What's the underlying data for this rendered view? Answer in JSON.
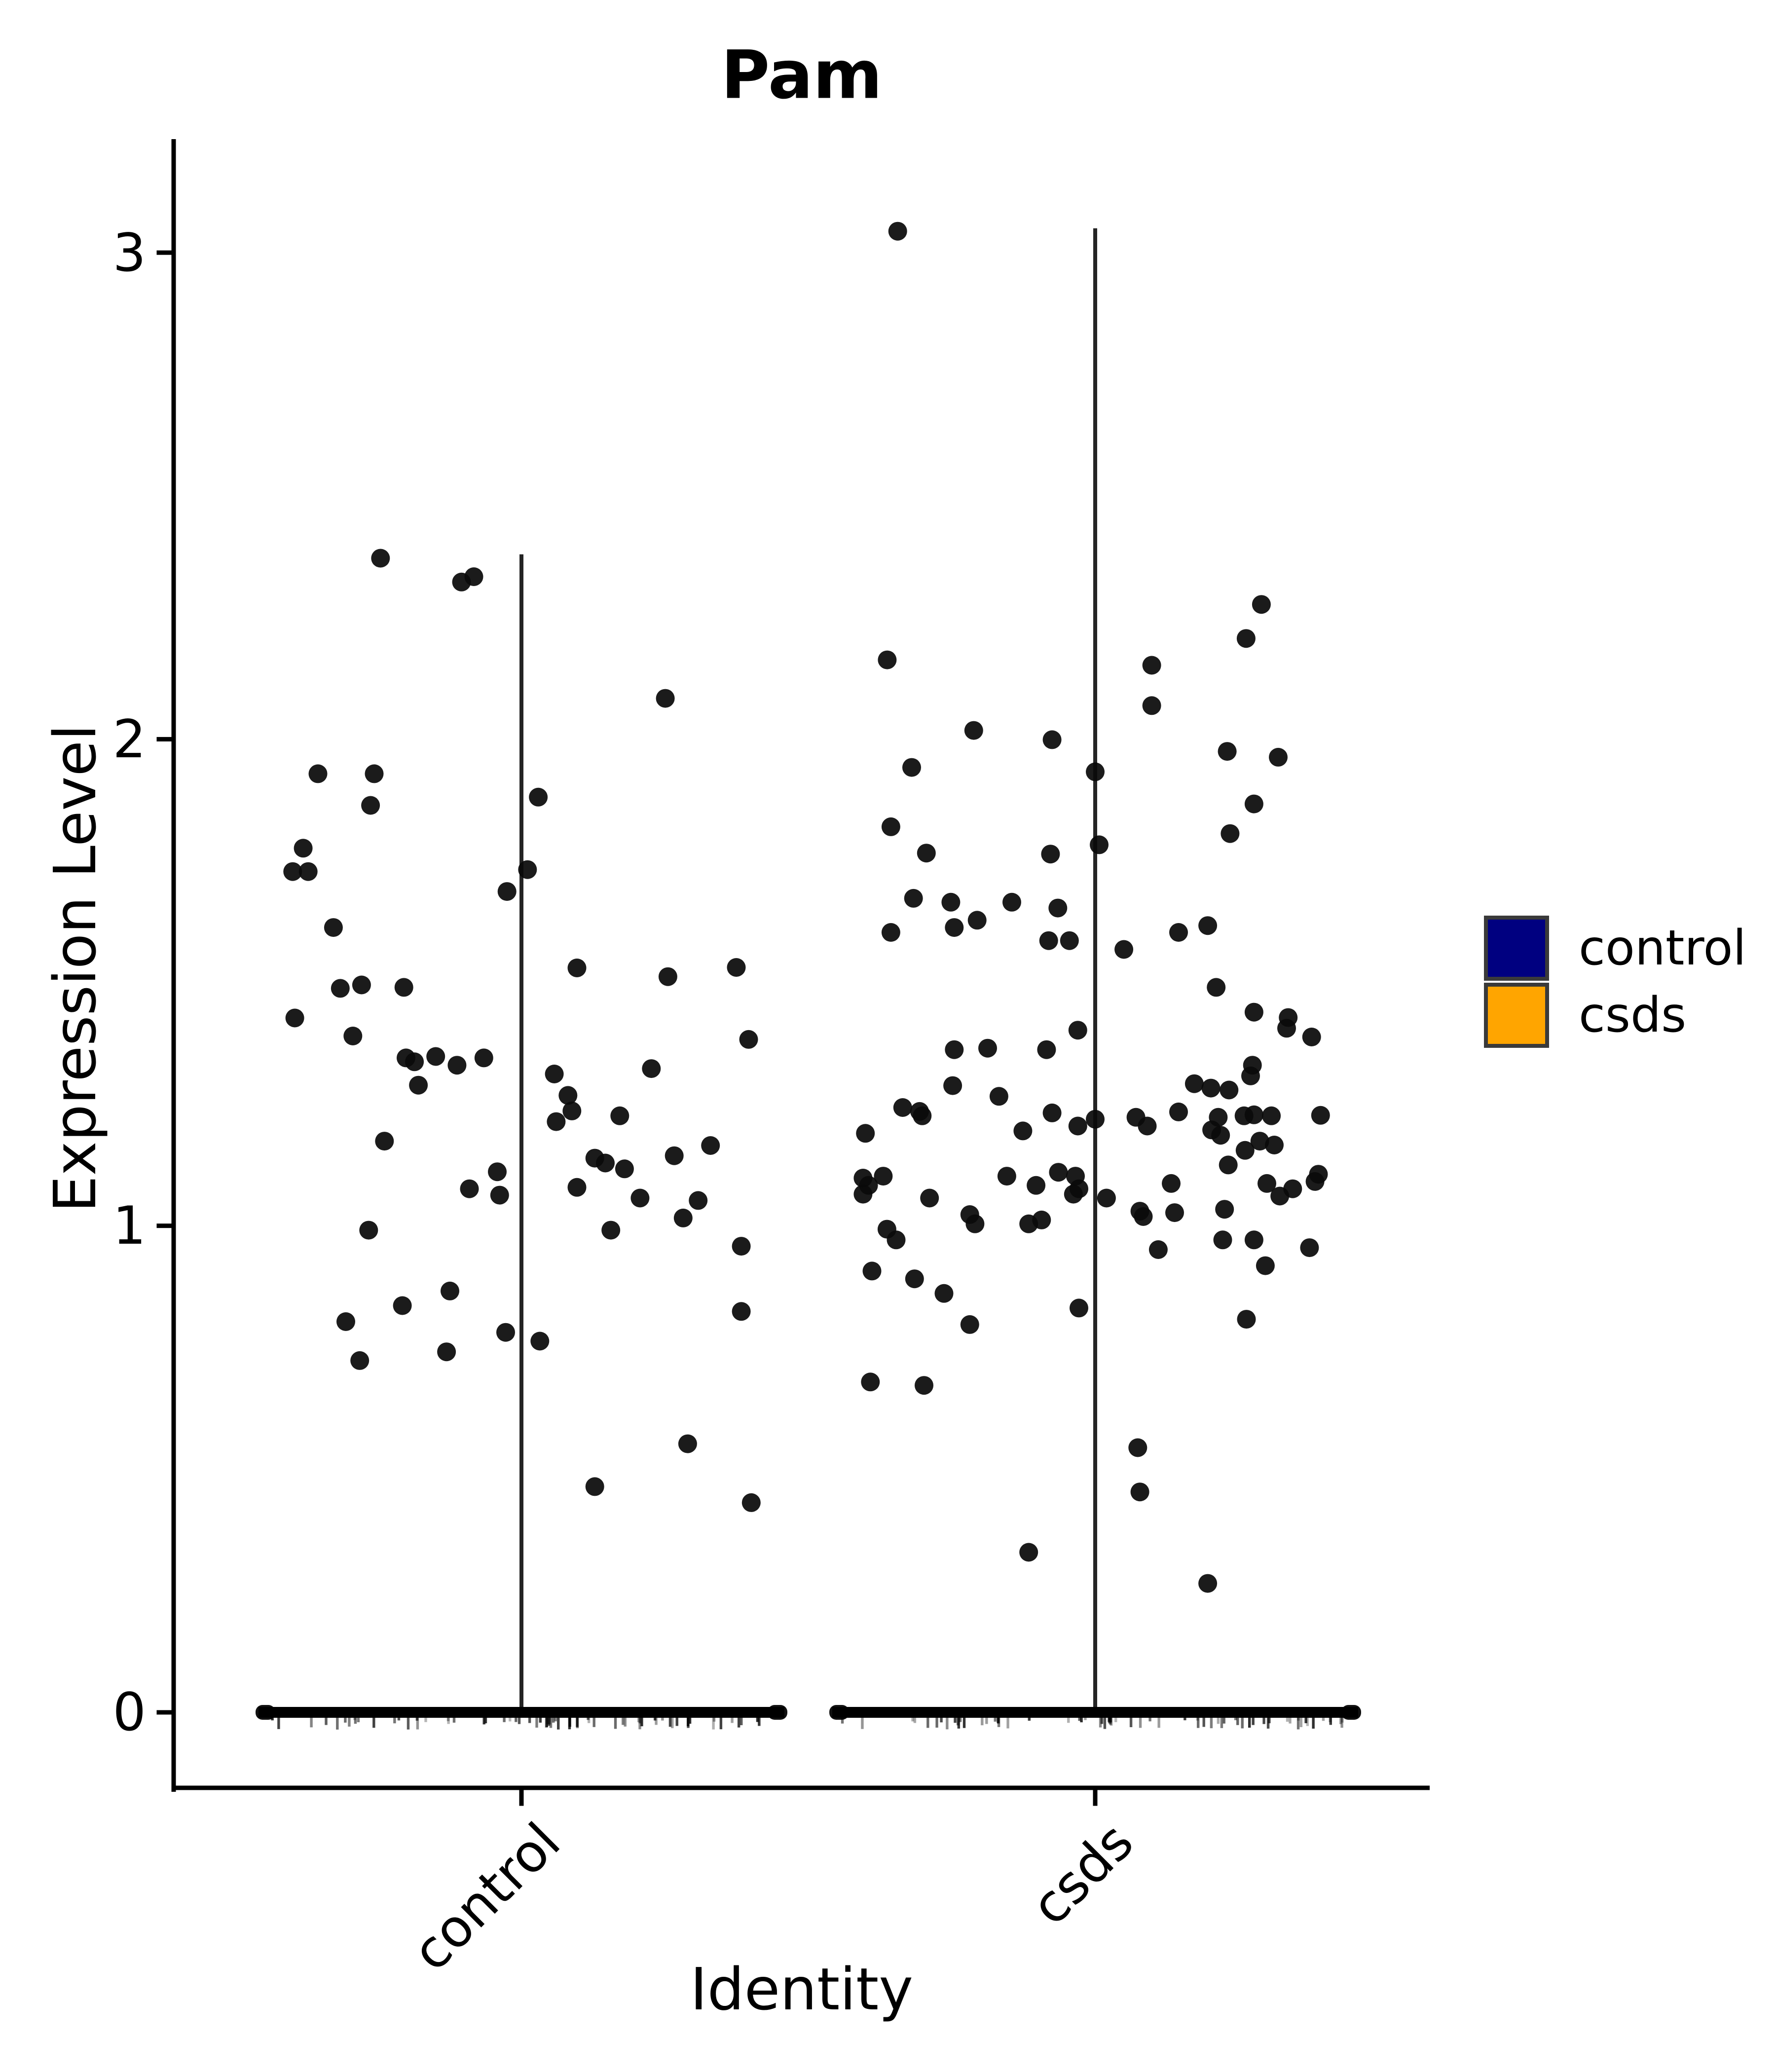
{
  "title": "Pam",
  "axes": {
    "x_label": "Identity",
    "y_label": "Expression Level",
    "y_tick_labels": [
      "3",
      "2",
      "1",
      "0"
    ],
    "x_tick_labels": [
      "control",
      "csds"
    ]
  },
  "legend": {
    "items": [
      {
        "label": "control",
        "color": "#000080"
      },
      {
        "label": "csds",
        "color": "#ffa500"
      }
    ],
    "border_color": "#3a3a3a"
  },
  "chart_data": {
    "type": "violin",
    "title": "Pam",
    "xlabel": "Identity",
    "ylabel": "Expression Level",
    "categories": [
      "control",
      "csds"
    ],
    "yticks": [
      0,
      1,
      2,
      3
    ],
    "ylim": [
      -0.16,
      3.23
    ],
    "grid": false,
    "legend_position": "right",
    "point_color": "#0a0a0a",
    "violin_line_color": "#242424",
    "series": [
      {
        "name": "control",
        "color": "#000080",
        "violin_range": [
          0,
          2.38
        ],
        "zero_band": true,
        "points": [
          [
            -0.536,
            2.372
          ],
          [
            -0.228,
            2.323
          ],
          [
            -0.181,
            2.334
          ],
          [
            0.547,
            2.084
          ],
          [
            -0.774,
            1.929
          ],
          [
            -0.56,
            1.929
          ],
          [
            -0.574,
            1.864
          ],
          [
            0.064,
            1.881
          ],
          [
            -0.83,
            1.776
          ],
          [
            -0.87,
            1.728
          ],
          [
            -0.811,
            1.728
          ],
          [
            0.023,
            1.732
          ],
          [
            -0.055,
            1.687
          ],
          [
            -0.715,
            1.613
          ],
          [
            0.211,
            1.53
          ],
          [
            0.557,
            1.512
          ],
          [
            0.817,
            1.531
          ],
          [
            -0.689,
            1.488
          ],
          [
            -0.608,
            1.495
          ],
          [
            -0.447,
            1.49
          ],
          [
            -0.862,
            1.427
          ],
          [
            -0.641,
            1.39
          ],
          [
            0.864,
            1.383
          ],
          [
            -0.439,
            1.345
          ],
          [
            -0.407,
            1.337
          ],
          [
            -0.326,
            1.348
          ],
          [
            -0.245,
            1.33
          ],
          [
            -0.143,
            1.345
          ],
          [
            -0.392,
            1.289
          ],
          [
            -0.521,
            1.174
          ],
          [
            -0.092,
            1.111
          ],
          [
            -0.198,
            1.076
          ],
          [
            -0.083,
            1.063
          ],
          [
            -0.581,
            0.991
          ],
          [
            -0.272,
            0.866
          ],
          [
            -0.453,
            0.836
          ],
          [
            -0.668,
            0.803
          ],
          [
            -0.06,
            0.781
          ],
          [
            0.07,
            0.763
          ],
          [
            -0.285,
            0.741
          ],
          [
            -0.615,
            0.723
          ],
          [
            0.494,
            1.323
          ],
          [
            0.125,
            1.312
          ],
          [
            0.177,
            1.268
          ],
          [
            0.192,
            1.236
          ],
          [
            0.132,
            1.214
          ],
          [
            0.374,
            1.226
          ],
          [
            0.279,
            1.139
          ],
          [
            0.319,
            1.129
          ],
          [
            0.392,
            1.117
          ],
          [
            0.581,
            1.144
          ],
          [
            0.719,
            1.165
          ],
          [
            0.211,
            1.079
          ],
          [
            0.451,
            1.057
          ],
          [
            0.672,
            1.052
          ],
          [
            0.615,
            1.016
          ],
          [
            0.34,
            0.991
          ],
          [
            0.836,
            0.958
          ],
          [
            0.836,
            0.824
          ],
          [
            0.632,
            0.552
          ],
          [
            0.279,
            0.464
          ],
          [
            0.874,
            0.431
          ]
        ]
      },
      {
        "name": "csds",
        "color": "#ffa500",
        "violin_range": [
          0,
          3.05
        ],
        "zero_band": true,
        "points": [
          [
            -0.751,
            3.044
          ],
          [
            -0.791,
            2.163
          ],
          [
            0.215,
            2.152
          ],
          [
            0.632,
            2.277
          ],
          [
            0.574,
            2.207
          ],
          [
            0.215,
            2.069
          ],
          [
            -0.462,
            2.018
          ],
          [
            -0.164,
            1.999
          ],
          [
            0.502,
            1.975
          ],
          [
            0.696,
            1.963
          ],
          [
            -0.698,
            1.942
          ],
          [
            0.0,
            1.933
          ],
          [
            0.604,
            1.867
          ],
          [
            -0.777,
            1.82
          ],
          [
            0.513,
            1.806
          ],
          [
            -0.642,
            1.766
          ],
          [
            -0.17,
            1.764
          ],
          [
            0.015,
            1.783
          ],
          [
            -0.691,
            1.673
          ],
          [
            -0.549,
            1.665
          ],
          [
            -0.317,
            1.665
          ],
          [
            -0.142,
            1.653
          ],
          [
            -0.449,
            1.628
          ],
          [
            -0.536,
            1.613
          ],
          [
            -0.777,
            1.603
          ],
          [
            0.317,
            1.603
          ],
          [
            0.428,
            1.617
          ],
          [
            -0.177,
            1.586
          ],
          [
            -0.098,
            1.586
          ],
          [
            0.109,
            1.568
          ],
          [
            0.46,
            1.49
          ],
          [
            0.604,
            1.439
          ],
          [
            0.734,
            1.428
          ],
          [
            0.728,
            1.406
          ],
          [
            0.823,
            1.388
          ],
          [
            -0.066,
            1.402
          ],
          [
            -0.536,
            1.362
          ],
          [
            -0.409,
            1.365
          ],
          [
            -0.185,
            1.362
          ],
          [
            0.598,
            1.33
          ],
          [
            -0.542,
            1.288
          ],
          [
            -0.366,
            1.266
          ],
          [
            0.377,
            1.292
          ],
          [
            0.44,
            1.283
          ],
          [
            0.509,
            1.279
          ],
          [
            0.591,
            1.308
          ],
          [
            -0.732,
            1.243
          ],
          [
            -0.668,
            1.235
          ],
          [
            -0.658,
            1.226
          ],
          [
            -0.164,
            1.232
          ],
          [
            0.468,
            1.223
          ],
          [
            0.566,
            1.226
          ],
          [
            -0.874,
            1.19
          ],
          [
            -0.275,
            1.195
          ],
          [
            -0.066,
            1.205
          ],
          [
            0.0,
            1.219
          ],
          [
            0.155,
            1.223
          ],
          [
            0.198,
            1.205
          ],
          [
            0.317,
            1.234
          ],
          [
            0.443,
            1.197
          ],
          [
            0.477,
            1.186
          ],
          [
            0.604,
            1.228
          ],
          [
            0.67,
            1.226
          ],
          [
            0.857,
            1.227
          ],
          [
            0.681,
            1.166
          ],
          [
            0.57,
            1.155
          ],
          [
            0.626,
            1.174
          ],
          [
            -0.883,
            1.098
          ],
          [
            -0.862,
            1.083
          ],
          [
            -0.883,
            1.065
          ],
          [
            -0.806,
            1.102
          ],
          [
            -0.63,
            1.057
          ],
          [
            -0.336,
            1.102
          ],
          [
            -0.225,
            1.083
          ],
          [
            -0.14,
            1.11
          ],
          [
            -0.075,
            1.102
          ],
          [
            -0.062,
            1.076
          ],
          [
            -0.083,
            1.065
          ],
          [
            0.043,
            1.057
          ],
          [
            0.17,
            1.03
          ],
          [
            0.183,
            1.019
          ],
          [
            0.289,
            1.087
          ],
          [
            0.302,
            1.027
          ],
          [
            0.492,
            1.034
          ],
          [
            0.506,
            1.125
          ],
          [
            0.653,
            1.087
          ],
          [
            0.702,
            1.061
          ],
          [
            0.751,
            1.076
          ],
          [
            0.836,
            1.091
          ],
          [
            0.849,
            1.106
          ],
          [
            -0.477,
            1.023
          ],
          [
            -0.457,
            1.004
          ],
          [
            -0.253,
            1.004
          ],
          [
            -0.204,
            1.012
          ],
          [
            -0.792,
            0.993
          ],
          [
            -0.757,
            0.971
          ],
          [
            0.24,
            0.951
          ],
          [
            0.485,
            0.971
          ],
          [
            0.604,
            0.971
          ],
          [
            0.815,
            0.955
          ],
          [
            0.647,
            0.918
          ],
          [
            -0.849,
            0.907
          ],
          [
            -0.687,
            0.891
          ],
          [
            -0.575,
            0.861
          ],
          [
            -0.062,
            0.831
          ],
          [
            -0.477,
            0.797
          ],
          [
            0.575,
            0.808
          ],
          [
            -0.855,
            0.679
          ],
          [
            -0.651,
            0.672
          ],
          [
            0.162,
            0.544
          ],
          [
            0.17,
            0.453
          ],
          [
            -0.253,
            0.329
          ],
          [
            0.428,
            0.265
          ]
        ]
      }
    ]
  }
}
